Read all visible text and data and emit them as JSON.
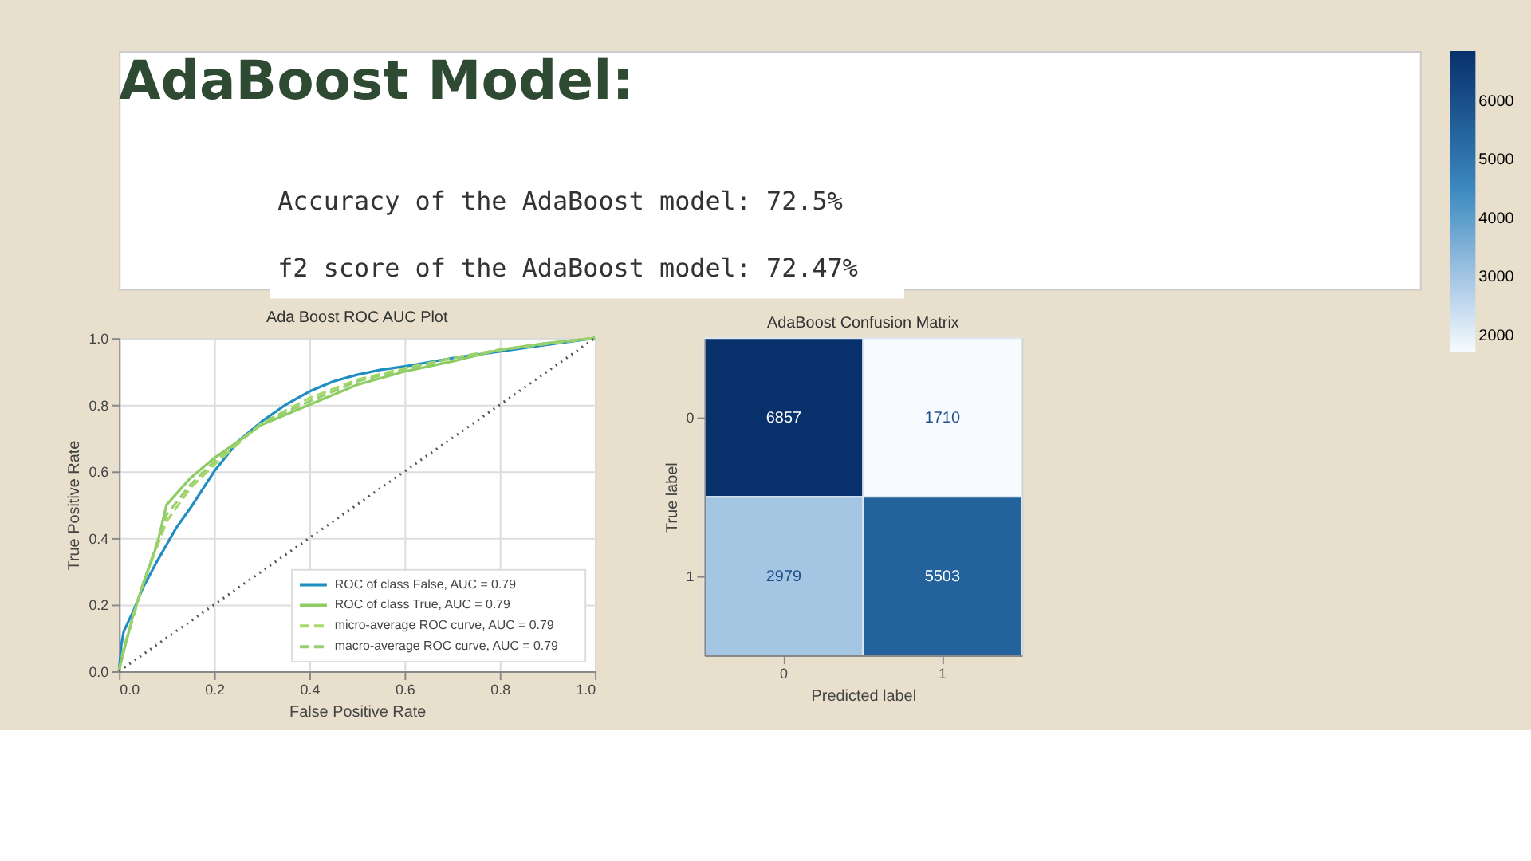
{
  "chart_data": [
    {
      "type": "other",
      "title": "AdaBoost Model:",
      "annotations": [
        "Accuracy of the AdaBoost model: 72.5%",
        "f2 score of the AdaBoost model: 72.47%"
      ]
    },
    {
      "type": "line",
      "title": "Ada Boost ROC AUC Plot",
      "xlabel": "False Positive Rate",
      "ylabel": "True Positive Rate",
      "xlim": [
        0,
        1
      ],
      "ylim": [
        0,
        1
      ],
      "xticks": [
        {
          "value": 0,
          "label": "0.0"
        },
        0.2,
        0.4,
        0.6,
        0.8,
        {
          "value": 1,
          "label": "1.0"
        }
      ],
      "yticks": [
        {
          "value": 0,
          "label": "0.0"
        },
        0.2,
        0.4,
        0.6,
        0.8,
        {
          "value": 1,
          "label": "1.0"
        }
      ],
      "grid": true,
      "legend": "bottom right",
      "series": [
        {
          "name": "ROC of class False, AUC = 0.79",
          "color": "#1f8dc1",
          "line_style": "solid",
          "x": [
            0,
            0.005,
            0.01,
            0.03,
            0.05,
            0.08,
            0.1,
            0.12,
            0.15,
            0.2,
            0.25,
            0.3,
            0.35,
            0.4,
            0.45,
            0.5,
            0.55,
            0.6,
            0.7,
            0.8,
            0.9,
            1
          ],
          "values": [
            0,
            0.08,
            0.12,
            0.18,
            0.25,
            0.33,
            0.38,
            0.43,
            0.49,
            0.6,
            0.69,
            0.75,
            0.8,
            0.84,
            0.87,
            0.89,
            0.905,
            0.915,
            0.94,
            0.96,
            0.98,
            1
          ]
        },
        {
          "name": "ROC of class True, AUC = 0.79",
          "color": "#8ccc62",
          "line_style": "solid",
          "x": [
            0,
            0.01,
            0.03,
            0.05,
            0.08,
            0.1,
            0.15,
            0.2,
            0.25,
            0.3,
            0.4,
            0.5,
            0.6,
            0.7,
            0.8,
            0.9,
            1
          ],
          "values": [
            0,
            0.06,
            0.17,
            0.26,
            0.38,
            0.5,
            0.58,
            0.64,
            0.69,
            0.74,
            0.8,
            0.86,
            0.9,
            0.93,
            0.965,
            0.985,
            1
          ]
        },
        {
          "name": "micro-average ROC curve, AUC = 0.79",
          "color": "#a6d96a",
          "line_style": "dashed",
          "x": [
            0,
            0.01,
            0.05,
            0.1,
            0.15,
            0.2,
            0.3,
            0.4,
            0.5,
            0.6,
            0.7,
            0.8,
            0.9,
            1
          ],
          "values": [
            0,
            0.07,
            0.26,
            0.45,
            0.55,
            0.62,
            0.745,
            0.82,
            0.875,
            0.91,
            0.94,
            0.965,
            0.983,
            1
          ]
        },
        {
          "name": "macro-average ROC curve, AUC = 0.79",
          "color": "#98d070",
          "line_style": "dashed",
          "x": [
            0,
            0.01,
            0.05,
            0.1,
            0.15,
            0.2,
            0.3,
            0.4,
            0.5,
            0.6,
            0.7,
            0.8,
            0.9,
            1
          ],
          "values": [
            0,
            0.065,
            0.26,
            0.47,
            0.56,
            0.63,
            0.745,
            0.81,
            0.87,
            0.905,
            0.94,
            0.965,
            0.985,
            1
          ]
        },
        {
          "color": "#555555",
          "line_style": "dotted",
          "x": [
            0,
            1
          ],
          "values": [
            0,
            1
          ]
        }
      ]
    },
    {
      "type": "heatmap",
      "title": "AdaBoost Confusion Matrix",
      "xlabel": "Predicted label",
      "ylabel": "True label",
      "categories": [
        "0",
        "1"
      ],
      "y_categories": [
        "0",
        "1"
      ],
      "cells": [
        [
          6857,
          1710
        ],
        [
          2979,
          5503
        ]
      ],
      "data_labels": true,
      "clim": [
        1710,
        6857
      ],
      "cticks": [
        2000,
        3000,
        4000,
        5000,
        6000
      ],
      "grid": false
    }
  ]
}
